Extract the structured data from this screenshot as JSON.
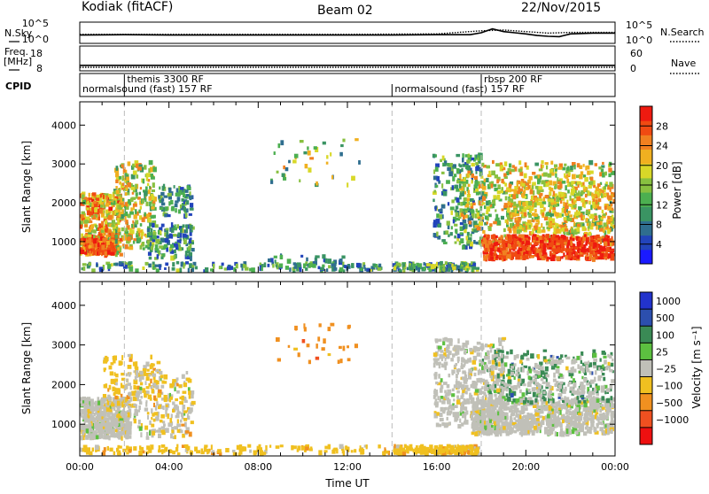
{
  "header": {
    "station": "Kodiak (fitACF)",
    "beam": "Beam 02",
    "date": "22/Nov/2015"
  },
  "chart_data": [
    {
      "type": "line",
      "panel": "noise",
      "left_label": "N.Sky",
      "right_label": "N.Search",
      "left_ticks": [
        "10^5",
        "10^0"
      ],
      "right_ticks": [
        "10^5",
        "10^0"
      ],
      "scale": "log",
      "series": [
        {
          "style": "solid",
          "x": [
            0,
            2,
            4,
            6,
            8,
            10,
            12,
            14,
            16,
            17.5,
            18,
            18.5,
            19,
            19.5,
            20,
            20.5,
            21,
            21.5,
            22,
            23,
            24
          ],
          "y": [
            1.9,
            2.0,
            1.9,
            1.9,
            1.9,
            1.9,
            1.9,
            1.9,
            2.0,
            2.0,
            2.5,
            3.5,
            2.8,
            2.5,
            2.2,
            1.8,
            1.6,
            1.5,
            2.2,
            2.4,
            2.4
          ]
        },
        {
          "style": "dotted",
          "x": [
            0,
            4,
            8,
            12,
            16,
            18,
            19,
            20,
            21,
            22,
            24
          ],
          "y": [
            2.1,
            2.1,
            2.1,
            2.1,
            2.2,
            3.0,
            3.2,
            2.8,
            2.4,
            2.6,
            2.6
          ]
        }
      ]
    },
    {
      "type": "line",
      "panel": "frequency",
      "left_label": "Freq. [MHz]",
      "right_label": "Nave",
      "left_ticks": [
        "18",
        "8"
      ],
      "right_ticks": [
        "60",
        "0"
      ],
      "left_range": [
        8,
        18
      ],
      "right_range": [
        0,
        60
      ],
      "series": [
        {
          "name": "",
          "style": "solid",
          "x": [
            0,
            24
          ],
          "y": [
            10,
            10
          ]
        },
        {
          "style": "dotted",
          "x": [
            0,
            24
          ],
          "y": [
            7,
            7
          ]
        }
      ]
    },
    {
      "type": "table",
      "panel": "cpid",
      "label": "CPID",
      "segments": [
        {
          "start": 0,
          "end": 14,
          "level": "low",
          "text": "normalsound (fast) 157 RF"
        },
        {
          "start": 2,
          "end": 18,
          "level": "high",
          "text": "themis 3300 RF"
        },
        {
          "start": 14,
          "end": 24,
          "level": "low",
          "text": "normalsound (fast) 157 RF"
        },
        {
          "start": 18,
          "end": 24,
          "level": "high",
          "text": "rbsp 200 RF"
        }
      ]
    },
    {
      "type": "heatmap",
      "panel": "power",
      "ylabel": "Slant Range [km]",
      "yticks": [
        1000,
        2000,
        3000,
        4000
      ],
      "ylim": [
        200,
        4600
      ],
      "colorbar_title": "Power [dB]",
      "colorbar_ticks": [
        4,
        8,
        12,
        16,
        20,
        24,
        28
      ],
      "colorbar_range": [
        0,
        32
      ],
      "dashed_times": [
        2,
        14,
        18
      ],
      "blobs": [
        {
          "t0": 0.0,
          "t1": 1.8,
          "r0": 700,
          "r1": 2300,
          "v0": 14,
          "v1": 30,
          "n": 420
        },
        {
          "t0": 0.0,
          "t1": 1.5,
          "r0": 750,
          "r1": 1100,
          "v0": 22,
          "v1": 32,
          "n": 160
        },
        {
          "t0": 1.5,
          "t1": 3.3,
          "r0": 850,
          "r1": 3100,
          "v0": 10,
          "v1": 26,
          "n": 260
        },
        {
          "t0": 3.0,
          "t1": 5.0,
          "r0": 600,
          "r1": 1500,
          "v0": 4,
          "v1": 18,
          "n": 140
        },
        {
          "t0": 3.5,
          "t1": 5.0,
          "r0": 1700,
          "r1": 2500,
          "v0": 4,
          "v1": 16,
          "n": 90
        },
        {
          "t0": 0.0,
          "t1": 13.5,
          "r0": 200,
          "r1": 500,
          "v0": 4,
          "v1": 18,
          "n": 220
        },
        {
          "t0": 8.0,
          "t1": 12.5,
          "r0": 300,
          "r1": 700,
          "v0": 4,
          "v1": 14,
          "n": 60
        },
        {
          "t0": 8.5,
          "t1": 12.5,
          "r0": 2500,
          "r1": 3700,
          "v0": 6,
          "v1": 24,
          "n": 40
        },
        {
          "t0": 14.0,
          "t1": 17.8,
          "r0": 200,
          "r1": 500,
          "v0": 4,
          "v1": 20,
          "n": 220
        },
        {
          "t0": 15.8,
          "t1": 18.0,
          "r0": 900,
          "r1": 3300,
          "v0": 4,
          "v1": 18,
          "n": 220
        },
        {
          "t0": 17.0,
          "t1": 24.0,
          "r0": 1000,
          "r1": 3100,
          "v0": 10,
          "v1": 26,
          "n": 650
        },
        {
          "t0": 18.0,
          "t1": 24.0,
          "r0": 600,
          "r1": 1200,
          "v0": 24,
          "v1": 32,
          "n": 650
        },
        {
          "t0": 19.0,
          "t1": 24.0,
          "r0": 1300,
          "r1": 2600,
          "v0": 16,
          "v1": 26,
          "n": 300
        }
      ]
    },
    {
      "type": "heatmap",
      "panel": "velocity",
      "ylabel": "Slant Range [km]",
      "yticks": [
        1000,
        2000,
        3000,
        4000
      ],
      "ylim": [
        200,
        4600
      ],
      "colorbar_title": "Velocity [m s⁻¹]",
      "colorbar_ticks": [
        "1000",
        "500",
        "100",
        "25",
        "−25",
        "−100",
        "−500",
        "−1000"
      ],
      "dashed_times": [
        2,
        14,
        18
      ],
      "xlabel": "Time UT",
      "xticks": [
        "00:00",
        "04:00",
        "08:00",
        "12:00",
        "16:00",
        "20:00",
        "00:00"
      ],
      "xlim": [
        0,
        24
      ],
      "blobs": [
        {
          "t0": 0.0,
          "t1": 2.2,
          "r0": 700,
          "r1": 1700,
          "cat": 4,
          "n": 500
        },
        {
          "t0": 1.0,
          "t1": 3.5,
          "r0": 1500,
          "r1": 2800,
          "cat": 5,
          "n": 120
        },
        {
          "t0": 2.0,
          "t1": 5.0,
          "r0": 700,
          "r1": 2400,
          "cat": 4,
          "n": 160
        },
        {
          "t0": 3.0,
          "t1": 5.0,
          "r0": 800,
          "r1": 2300,
          "cat": 5,
          "n": 60
        },
        {
          "t0": 0.0,
          "t1": 14.0,
          "r0": 200,
          "r1": 500,
          "cat": 5,
          "n": 260
        },
        {
          "t0": 8.5,
          "t1": 12.5,
          "r0": 2500,
          "r1": 3600,
          "cat": 6,
          "n": 30
        },
        {
          "t0": 14.0,
          "t1": 17.8,
          "r0": 200,
          "r1": 500,
          "cat": 5,
          "n": 300
        },
        {
          "t0": 15.8,
          "t1": 19.0,
          "r0": 1000,
          "r1": 3200,
          "cat": 4,
          "n": 420
        },
        {
          "t0": 17.5,
          "t1": 24.0,
          "r0": 800,
          "r1": 1700,
          "cat": 4,
          "n": 900
        },
        {
          "t0": 18.0,
          "t1": 24.0,
          "r0": 1600,
          "r1": 2900,
          "cat": 2,
          "n": 200
        },
        {
          "t0": 18.0,
          "t1": 24.0,
          "r0": 1700,
          "r1": 2800,
          "cat": 4,
          "n": 220
        }
      ]
    }
  ],
  "colors": {
    "power_scale": [
      "#1a1aff",
      "#2244bb",
      "#2f6e8f",
      "#3a9463",
      "#4caf50",
      "#88c040",
      "#d8d828",
      "#f0b020",
      "#f08020",
      "#f04a12",
      "#ee1a10"
    ],
    "velocity_scale": [
      "#2233cc",
      "#2c4fae",
      "#3a8a55",
      "#5cc040",
      "#c0c0b8",
      "#f0c020",
      "#f09020",
      "#f05020",
      "#ee1010"
    ]
  }
}
